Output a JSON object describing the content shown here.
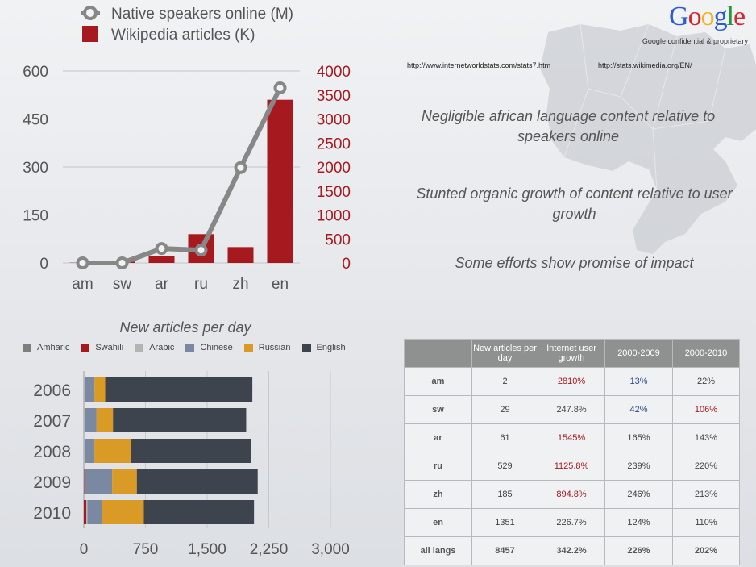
{
  "header": {
    "logo_text": "Google",
    "logo_colors": [
      "#2a5ad8",
      "#d4282d",
      "#f1b51a",
      "#2a5ad8",
      "#1e9b3b",
      "#d4282d"
    ],
    "confidential": "Google confidential & proprietary"
  },
  "sources": {
    "url1": "http://www.internetworldstats.com/stats7.htm",
    "url2": "http://stats.wikimedia.org/EN/"
  },
  "bullets": [
    "Negligible african language content relative to speakers online",
    "Stunted organic growth of content relative to user growth",
    "Some efforts show promise of impact"
  ],
  "chart_data": [
    {
      "type": "bar+line",
      "categories": [
        "am",
        "sw",
        "ar",
        "ru",
        "zh",
        "en"
      ],
      "series": [
        {
          "name": "Native speakers online (M)",
          "type": "line",
          "axis": "left",
          "color": "#878787",
          "values": [
            0,
            0,
            45,
            40,
            298,
            547
          ]
        },
        {
          "name": "Wikipedia articles (K)",
          "type": "bar",
          "axis": "right",
          "color": "#a6191e",
          "values": [
            5,
            30,
            140,
            600,
            330,
            3400
          ]
        }
      ],
      "y_left": {
        "ylim": [
          0,
          600
        ],
        "ticks": [
          "0",
          "150",
          "300",
          "450",
          "600"
        ]
      },
      "y_right": {
        "ylim": [
          0,
          4000
        ],
        "ticks": [
          "0",
          "500",
          "1000",
          "1500",
          "2000",
          "2500",
          "3000",
          "3500",
          "4000"
        ],
        "color": "#a6191e"
      },
      "legend_position": "top-left",
      "grid": true
    },
    {
      "type": "bar",
      "orientation": "horizontal",
      "stacked": true,
      "title": "New articles per day",
      "categories": [
        "2006",
        "2007",
        "2008",
        "2009",
        "2010"
      ],
      "series": [
        {
          "name": "Amharic",
          "color": "#7e7e7e",
          "values": [
            0,
            0,
            0,
            0,
            0
          ]
        },
        {
          "name": "Swahili",
          "color": "#a6191e",
          "values": [
            0,
            0,
            0,
            5,
            30
          ]
        },
        {
          "name": "Arabic",
          "color": "#b3b3b3",
          "values": [
            15,
            10,
            10,
            10,
            15
          ]
        },
        {
          "name": "Chinese",
          "color": "#7a88a2",
          "values": [
            115,
            145,
            120,
            330,
            175
          ]
        },
        {
          "name": "Russian",
          "color": "#d99a26",
          "values": [
            130,
            200,
            440,
            300,
            510
          ]
        },
        {
          "name": "English",
          "color": "#3e444e",
          "values": [
            1790,
            1620,
            1460,
            1470,
            1340
          ]
        }
      ],
      "xlim": [
        0,
        3000
      ],
      "x_ticks": [
        "0",
        "750",
        "1,500",
        "2,250",
        "3,000"
      ],
      "legend_position": "top"
    },
    {
      "type": "table",
      "columns": [
        "",
        "New articles per day",
        "Internet user growth",
        "2000-2009",
        "2000-2010"
      ],
      "rows": [
        [
          "am",
          "2",
          "2810%",
          "13%",
          "22%"
        ],
        [
          "sw",
          "29",
          "247.8%",
          "42%",
          "106%"
        ],
        [
          "ar",
          "61",
          "1545%",
          "165%",
          "143%"
        ],
        [
          "ru",
          "529",
          "1125.8%",
          "239%",
          "220%"
        ],
        [
          "zh",
          "185",
          "894.8%",
          "246%",
          "213%"
        ],
        [
          "en",
          "1351",
          "226.7%",
          "124%",
          "110%"
        ],
        [
          "all langs",
          "8457",
          "342.2%",
          "226%",
          "202%"
        ]
      ]
    }
  ]
}
